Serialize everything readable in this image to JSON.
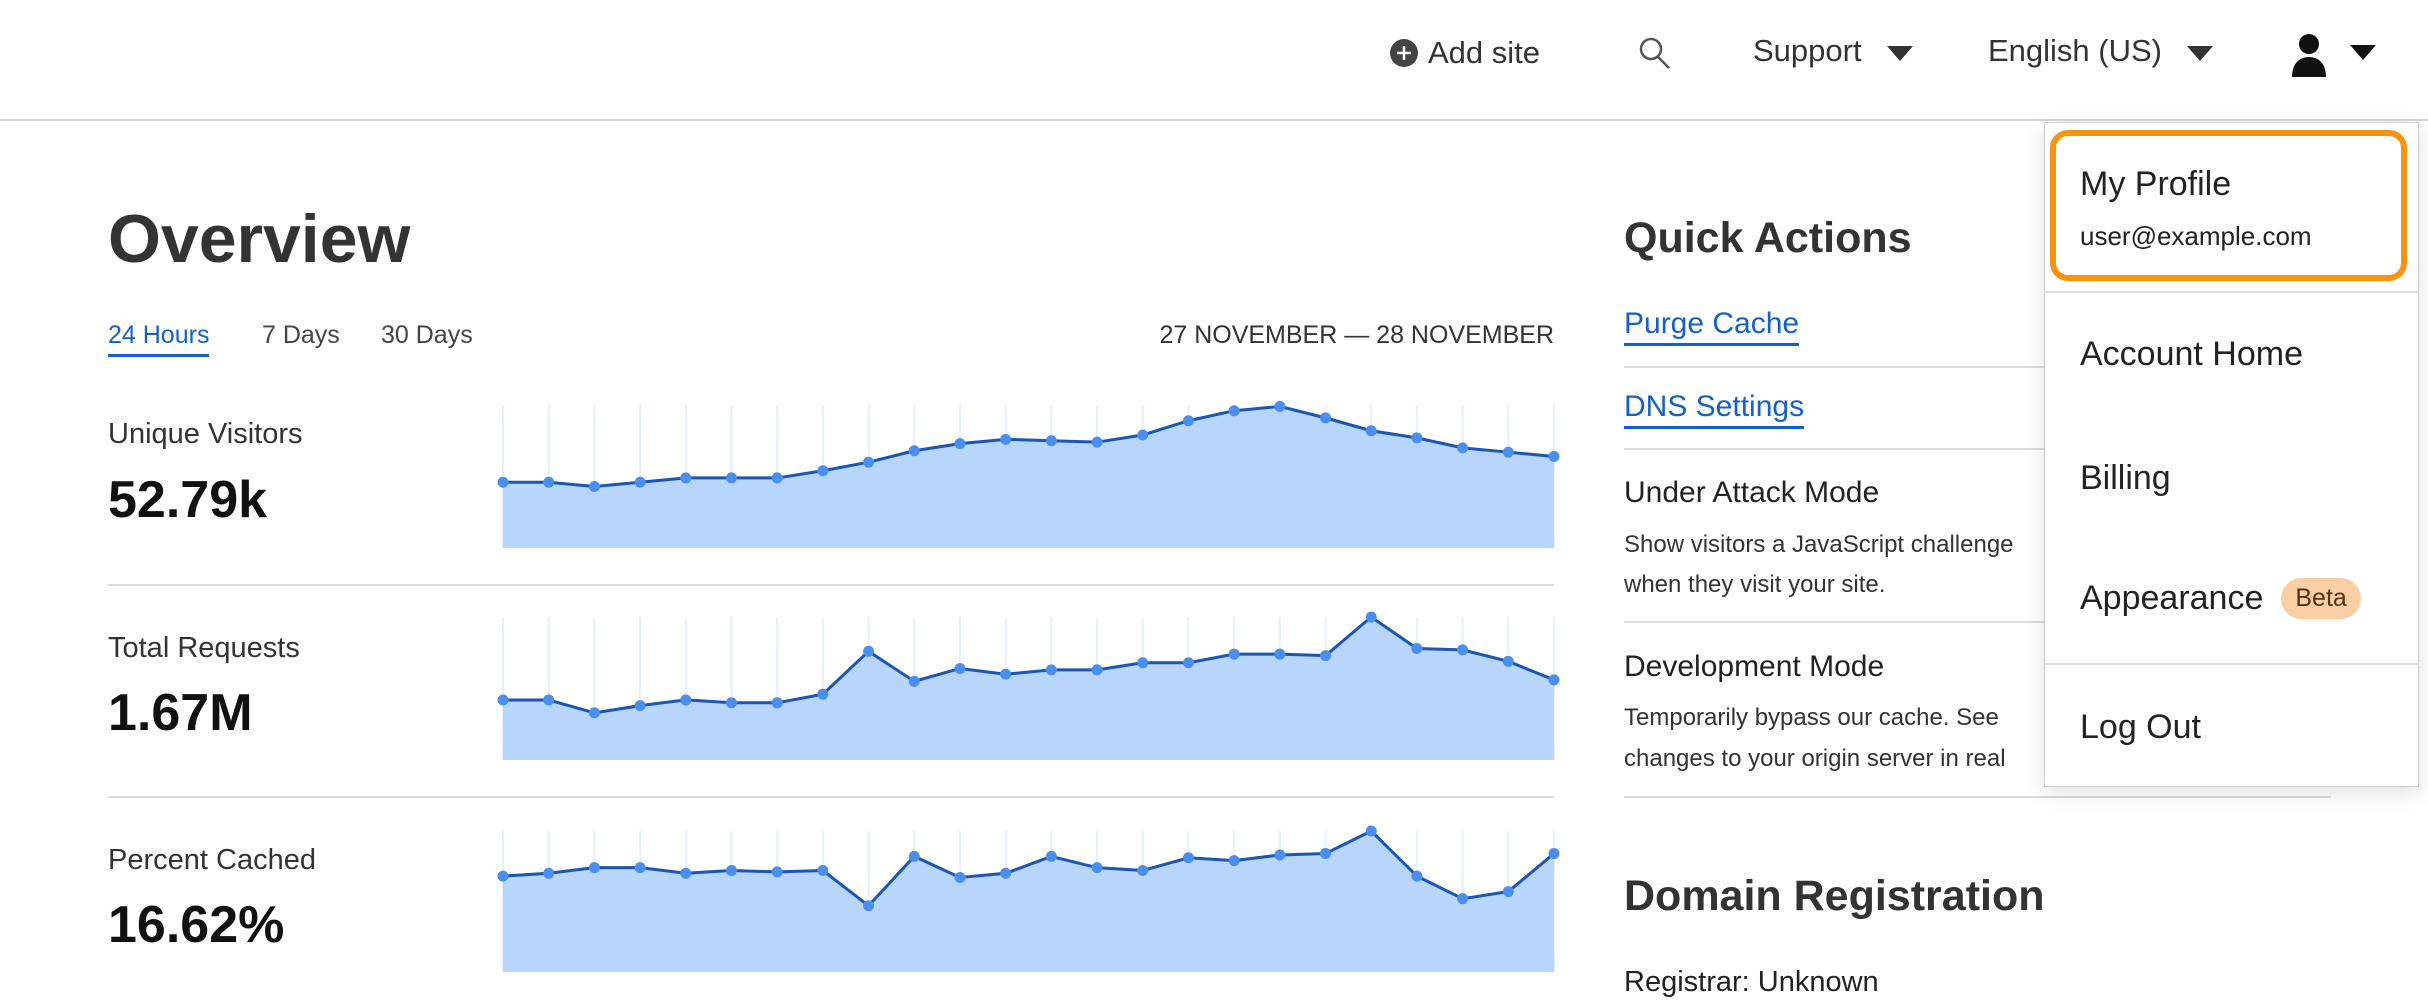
{
  "header": {
    "add_site": "Add site",
    "support": "Support",
    "language": "English (US)",
    "icons": {
      "add": "plus-circle-icon",
      "search": "search-icon",
      "user": "user-icon",
      "caret": "caret-down-icon"
    }
  },
  "overview": {
    "title": "Overview",
    "tabs": [
      {
        "label": "24 Hours",
        "active": true
      },
      {
        "label": "7 Days"
      },
      {
        "label": "30 Days"
      }
    ],
    "date_range": "27 NOVEMBER — 28 NOVEMBER",
    "metrics": [
      {
        "label": "Unique Visitors",
        "value": "52.79k"
      },
      {
        "label": "Total Requests",
        "value": "1.67M"
      },
      {
        "label": "Percent Cached",
        "value": "16.62%"
      }
    ]
  },
  "chart_data": [
    {
      "type": "area",
      "metric": "Unique Visitors",
      "ylim": [
        0,
        100
      ],
      "grid": "vertical",
      "values": [
        46,
        46,
        43,
        46,
        49,
        49,
        49,
        54,
        60,
        68,
        73,
        76,
        75,
        74,
        79,
        89,
        96,
        99,
        91,
        82,
        77,
        70,
        67,
        64
      ]
    },
    {
      "type": "area",
      "metric": "Total Requests",
      "ylim": [
        0,
        100
      ],
      "grid": "vertical",
      "values": [
        42,
        42,
        33,
        38,
        42,
        40,
        40,
        46,
        76,
        55,
        64,
        60,
        63,
        63,
        68,
        68,
        74,
        74,
        73,
        100,
        78,
        77,
        69,
        56
      ]
    },
    {
      "type": "area",
      "metric": "Percent Cached",
      "ylim": [
        0,
        100
      ],
      "grid": "vertical",
      "values": [
        68,
        70,
        74,
        74,
        70,
        72,
        71,
        72,
        47,
        82,
        67,
        70,
        82,
        74,
        72,
        81,
        79,
        83,
        84,
        100,
        68,
        52,
        57,
        84
      ]
    }
  ],
  "colors": {
    "fill": "#b8d5fb",
    "line": "#1a56b8",
    "point": "#4a8ff0",
    "link": "#1360c8",
    "highlight": "#f7930f",
    "beta_bg": "#fbcfa6"
  },
  "quick_actions": {
    "title": "Quick Actions",
    "purge_cache": "Purge Cache",
    "dns_settings": "DNS Settings",
    "under_attack_title": "Under Attack Mode",
    "under_attack_desc1": "Show visitors a JavaScript challenge",
    "under_attack_desc2": "when they visit your site.",
    "dev_mode_title": "Development Mode",
    "dev_mode_desc1": "Temporarily bypass our cache. See",
    "dev_mode_desc2": "changes to your origin server in real"
  },
  "domain_registration": {
    "title": "Domain Registration",
    "registrar": "Registrar: Unknown"
  },
  "user_menu": {
    "my_profile": "My Profile",
    "email": "user@example.com",
    "account_home": "Account Home",
    "billing": "Billing",
    "appearance": "Appearance",
    "beta": "Beta",
    "log_out": "Log Out"
  }
}
